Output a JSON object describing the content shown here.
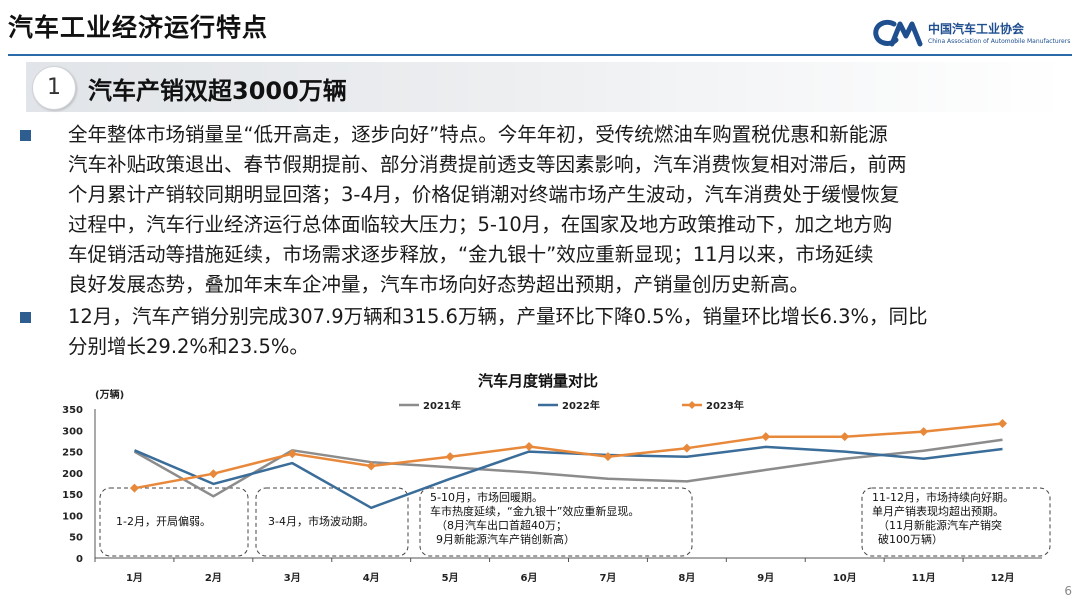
{
  "header": {
    "title": "汽车工业经济运行特点",
    "org_name_cn": "中国汽车工业协会",
    "org_name_en": "China Association of Automobile Manufacturers"
  },
  "section": {
    "number": "1",
    "title": "汽车产销双超3000万辆"
  },
  "bullets": [
    {
      "lines": [
        "全年整体市场销量呈“低开高走，逐步向好”特点。今年年初，受传统燃油车购置税优惠和新能源",
        "汽车补贴政策退出、春节假期提前、部分消费提前透支等因素影响，汽车消费恢复相对滞后，前两",
        "个月累计产销较同期明显回落；3-4月，价格促销潮对终端市场产生波动，汽车消费处于缓慢恢复",
        "过程中，汽车行业经济运行总体面临较大压力；5-10月，在国家及地方政策推动下，加之地方购",
        "车促销活动等措施延续，市场需求逐步释放，“金九银十”效应重新显现；11月以来，市场延续",
        "良好发展态势，叠加年末车企冲量，汽车市场向好态势超出预期，产销量创历史新高。"
      ]
    },
    {
      "lines": [
        "12月，汽车产销分别完成307.9万辆和315.6万辆，产量环比下降0.5%，销量环比增长6.3%，同比",
        "分别增长29.2%和23.5%。"
      ]
    }
  ],
  "chart_data": {
    "type": "line",
    "title": "汽车月度销量对比",
    "ylabel": "(万辆)",
    "xlabel": "",
    "categories": [
      "1月",
      "2月",
      "3月",
      "4月",
      "5月",
      "6月",
      "7月",
      "8月",
      "9月",
      "10月",
      "11月",
      "12月"
    ],
    "ylim": [
      0,
      350
    ],
    "yticks": [
      0,
      50,
      100,
      150,
      200,
      250,
      300,
      350
    ],
    "grid": false,
    "legend_position": "top",
    "series": [
      {
        "name": "2021年",
        "color": "#8c8c8c",
        "values": [
          250,
          145,
          253,
          225,
          213,
          201,
          186,
          180,
          207,
          233,
          252,
          278
        ]
      },
      {
        "name": "2022年",
        "color": "#3a6d99",
        "values": [
          253,
          174,
          223,
          118,
          186,
          250,
          242,
          238,
          261,
          250,
          233,
          256
        ]
      },
      {
        "name": "2023年",
        "color": "#e8883a",
        "marker": "diamond",
        "values": [
          164,
          198,
          245,
          216,
          238,
          262,
          238,
          258,
          285,
          285,
          297,
          316
        ]
      }
    ],
    "annotations": [
      {
        "lines": [
          "1-2月，开局偏弱。"
        ]
      },
      {
        "lines": [
          "3-4月，市场波动期。"
        ]
      },
      {
        "lines": [
          "5-10月，市场回暖期。",
          "车市热度延续，“金九银十”效应重新显现。",
          "（8月汽车出口首超40万；",
          "9月新能源汽车产销创新高）"
        ]
      },
      {
        "lines": [
          "11-12月，市场持续向好期。",
          "单月产销表现均超出预期。",
          "（11月新能源汽车产销突",
          "破100万辆）"
        ]
      }
    ]
  },
  "page": {
    "number": "6"
  }
}
